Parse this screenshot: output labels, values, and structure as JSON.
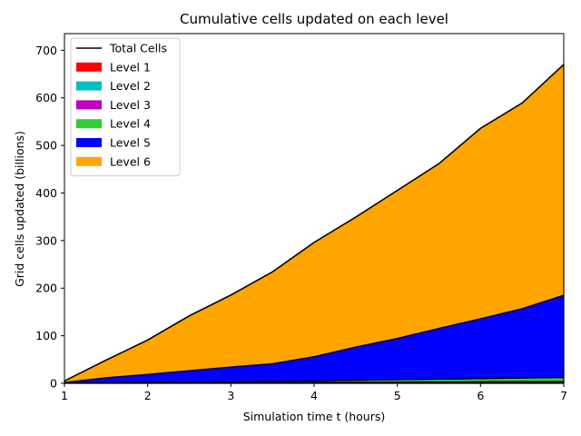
{
  "chart_data": {
    "type": "area",
    "title": "Cumulative cells updated on each level",
    "xlabel": "Simulation time t (hours)",
    "ylabel": "Grid cells updated (billions)",
    "xlim": [
      1,
      7
    ],
    "ylim": [
      0,
      735
    ],
    "xticks": [
      1,
      2,
      3,
      4,
      5,
      6,
      7
    ],
    "yticks": [
      0,
      100,
      200,
      300,
      400,
      500,
      600,
      700
    ],
    "legend_position": "upper-left",
    "x": [
      1,
      1.5,
      2,
      2.5,
      3,
      3.5,
      4,
      4.5,
      5,
      5.5,
      6,
      6.5,
      7
    ],
    "total_line": {
      "name": "Total Cells",
      "color": "#000000"
    },
    "series": [
      {
        "name": "Level 1",
        "color": "#ff0000",
        "values": [
          0.1,
          0.2,
          0.3,
          0.4,
          0.5,
          0.6,
          0.7,
          0.8,
          0.9,
          1.0,
          1.1,
          1.2,
          1.3
        ]
      },
      {
        "name": "Level 2",
        "color": "#00bfbf",
        "values": [
          0.1,
          0.2,
          0.3,
          0.4,
          0.5,
          0.6,
          0.7,
          0.8,
          0.9,
          1.0,
          1.1,
          1.2,
          1.3
        ]
      },
      {
        "name": "Level 3",
        "color": "#bf00bf",
        "values": [
          0.1,
          0.2,
          0.3,
          0.4,
          0.5,
          0.6,
          0.7,
          0.8,
          0.9,
          1.0,
          1.1,
          1.2,
          1.3
        ]
      },
      {
        "name": "Level 4",
        "color": "#32cd32",
        "values": [
          0.2,
          0.7,
          1.1,
          1.6,
          2.0,
          2.5,
          3.0,
          4.0,
          4.8,
          5.7,
          6.6,
          7.5,
          8.4
        ]
      },
      {
        "name": "Level 5",
        "color": "#0000ff",
        "values": [
          1.5,
          10.5,
          17,
          24,
          31,
          37,
          51,
          70,
          87,
          107,
          126,
          146,
          173
        ]
      },
      {
        "name": "Level 6",
        "color": "#ffa500",
        "values": [
          3,
          37,
          72,
          115,
          151,
          193,
          240,
          273,
          311,
          346,
          400,
          432,
          485
        ]
      }
    ]
  }
}
